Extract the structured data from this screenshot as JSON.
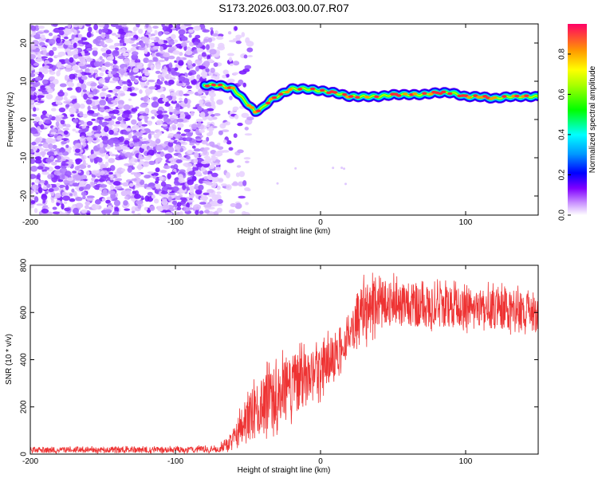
{
  "figure": {
    "title": "S173.2026.003.00.07.R07"
  },
  "chart_data": [
    {
      "type": "heatmap",
      "xlabel": "Height of straight line (km)",
      "ylabel": "Frequency (Hz)",
      "xlim": [
        -200,
        150
      ],
      "ylim": [
        -25,
        25
      ],
      "xticks": [
        -200,
        -100,
        0,
        100
      ],
      "yticks": [
        -20,
        -10,
        0,
        10,
        20
      ],
      "noise_region_x": [
        -200,
        -70
      ],
      "ridge_start_x": -80,
      "ridge_frequency": {
        "x": [
          -80,
          -70,
          -60,
          -50,
          -45,
          -40,
          -35,
          -30,
          -20,
          -10,
          0,
          10,
          20,
          30,
          40,
          50,
          60,
          70,
          80,
          90,
          100,
          110,
          120,
          130,
          140,
          150
        ],
        "y": [
          9,
          9,
          8,
          4,
          2,
          3,
          5,
          6,
          8,
          8,
          7.5,
          7,
          6,
          6,
          6,
          6.5,
          6.5,
          6.5,
          7,
          7,
          6,
          6,
          5.5,
          6,
          6,
          6
        ]
      },
      "colorbar": {
        "label": "Normalized spectral amplitude",
        "range": [
          0,
          0.95
        ],
        "ticks": [
          0.0,
          0.2,
          0.4,
          0.6,
          0.8
        ]
      },
      "grid": false
    },
    {
      "type": "line",
      "xlabel": "Height of straight line (km)",
      "ylabel": "SNR (10 * v/v)",
      "xlim": [
        -200,
        150
      ],
      "ylim": [
        0,
        800
      ],
      "xticks": [
        -200,
        -100,
        0,
        100
      ],
      "yticks": [
        0,
        200,
        400,
        600,
        800
      ],
      "color": "#ee3333",
      "envelope": {
        "x": [
          -200,
          -150,
          -100,
          -70,
          -60,
          -55,
          -50,
          -40,
          -30,
          -20,
          -10,
          0,
          10,
          20,
          25,
          30,
          40,
          60,
          80,
          100,
          120,
          140,
          150
        ],
        "lo": [
          5,
          5,
          5,
          8,
          20,
          30,
          50,
          80,
          120,
          160,
          200,
          250,
          330,
          420,
          460,
          480,
          520,
          540,
          540,
          530,
          530,
          520,
          520
        ],
        "hi": [
          30,
          30,
          30,
          35,
          100,
          180,
          250,
          330,
          380,
          420,
          430,
          450,
          520,
          600,
          680,
          720,
          740,
          720,
          720,
          700,
          700,
          690,
          690
        ]
      },
      "grid": false
    }
  ]
}
